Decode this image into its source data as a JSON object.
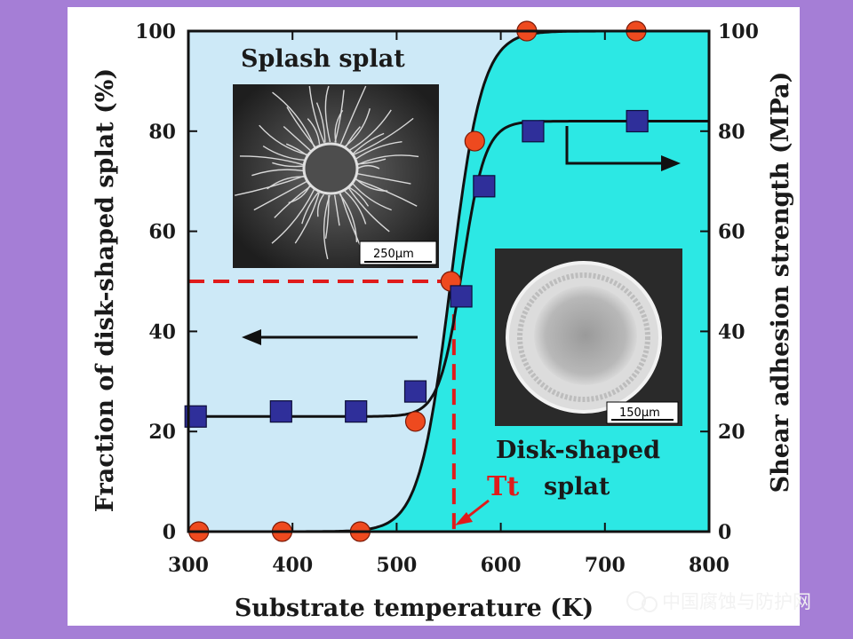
{
  "chart_data": {
    "type": "scatter",
    "xlabel": "Substrate temperature (K)",
    "ylabel_left": "Fraction of disk-shaped splat (%)",
    "ylabel_right": "Shear adhesion strength (MPa)",
    "xlim": [
      300,
      800
    ],
    "ylim_left": [
      0,
      100
    ],
    "ylim_right": [
      0,
      100
    ],
    "x_ticks": [
      "300",
      "400",
      "500",
      "600",
      "700",
      "800"
    ],
    "y_ticks": [
      "0",
      "20",
      "40",
      "60",
      "80",
      "100"
    ],
    "series": [
      {
        "name": "Fraction of disk-shaped splat",
        "axis": "left",
        "marker": "circle",
        "color": "#ee4a1f",
        "x": [
          310,
          390,
          465,
          518,
          552,
          575,
          625,
          730
        ],
        "y": [
          0,
          0,
          0,
          22,
          50,
          78,
          100,
          100
        ]
      },
      {
        "name": "Shear adhesion strength",
        "axis": "right",
        "marker": "square",
        "color": "#2f2f9a",
        "x": [
          307,
          389,
          461,
          518,
          562,
          584,
          631,
          731
        ],
        "y": [
          23,
          24,
          24,
          28,
          47,
          69,
          80,
          82
        ]
      }
    ],
    "annotations": {
      "transition_label": "Tt",
      "transition_x": 555,
      "transition_y": 50,
      "inset_top_label": "Splash splat",
      "inset_top_scale": "250μm",
      "inset_bottom_label_1": "Disk-shaped",
      "inset_bottom_label_2": "splat",
      "inset_bottom_scale": "150μm"
    },
    "colors": {
      "left_region": "#cde9f7",
      "right_region": "#2ce8e4",
      "circle_marker": "#ee4a1f",
      "square_marker": "#2f2f9a",
      "guide_line": "#e01b1b",
      "background": "#a57ed6"
    }
  },
  "watermark": "中国腐蚀与防护网"
}
